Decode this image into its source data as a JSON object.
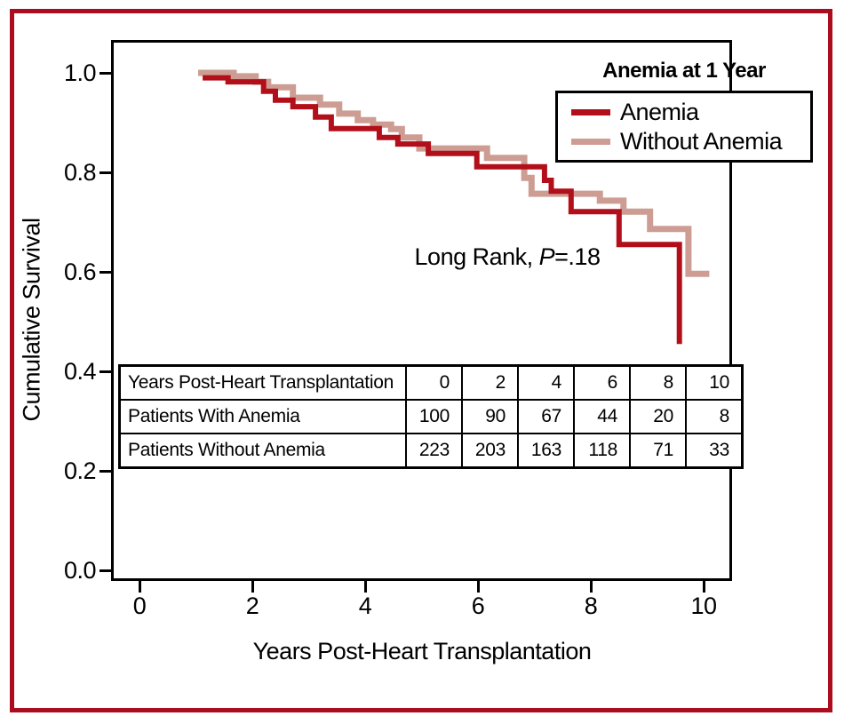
{
  "figure": {
    "border_color": "#ab0c1e",
    "background_color": "#ffffff"
  },
  "chart_data": {
    "type": "line",
    "subtype": "kaplan-meier-step-curve",
    "title": "",
    "xlabel": "Years Post-Heart Transplantation",
    "ylabel": "Cumulative Survival",
    "x_ticks": [
      "0",
      "2",
      "4",
      "6",
      "8",
      "10"
    ],
    "y_ticks": [
      "0.0",
      "0.2",
      "0.4",
      "0.6",
      "0.8",
      "1.0"
    ],
    "xlim": [
      -0.5,
      10.5
    ],
    "ylim": [
      0.0,
      1.06
    ],
    "grid": false,
    "legend": {
      "title": "Anemia at 1 Year",
      "position": "top-right",
      "entries": [
        {
          "label": "Anemia",
          "color": "#b20f1a"
        },
        {
          "label": "Without Anemia",
          "color": "#cd9d93"
        }
      ]
    },
    "annotation": {
      "prefix": "Long Rank, ",
      "p": "P",
      "suffix": "=.18"
    },
    "series": [
      {
        "name": "Anemia",
        "color": "#b20f1a",
        "steps": [
          [
            1.12,
            0.99
          ],
          [
            1.57,
            0.982
          ],
          [
            2.2,
            0.963
          ],
          [
            2.41,
            0.945
          ],
          [
            2.72,
            0.932
          ],
          [
            3.12,
            0.911
          ],
          [
            3.4,
            0.888
          ],
          [
            4.25,
            0.87
          ],
          [
            4.58,
            0.857
          ],
          [
            5.12,
            0.838
          ],
          [
            5.98,
            0.811
          ],
          [
            7.18,
            0.784
          ],
          [
            7.3,
            0.762
          ],
          [
            7.65,
            0.721
          ],
          [
            8.5,
            0.655
          ],
          [
            9.57,
            0.455
          ]
        ]
      },
      {
        "name": "Without Anemia",
        "color": "#cd9d93",
        "steps": [
          [
            1.04,
            1.0
          ],
          [
            1.67,
            0.993
          ],
          [
            2.06,
            0.982
          ],
          [
            2.28,
            0.971
          ],
          [
            2.72,
            0.95
          ],
          [
            3.2,
            0.936
          ],
          [
            3.54,
            0.918
          ],
          [
            3.87,
            0.905
          ],
          [
            4.14,
            0.896
          ],
          [
            4.46,
            0.887
          ],
          [
            4.65,
            0.87
          ],
          [
            4.96,
            0.848
          ],
          [
            6.16,
            0.829
          ],
          [
            6.82,
            0.789
          ],
          [
            6.95,
            0.757
          ],
          [
            8.16,
            0.743
          ],
          [
            8.58,
            0.721
          ],
          [
            9.05,
            0.686
          ],
          [
            9.73,
            0.596
          ],
          [
            10.1,
            0.596
          ]
        ]
      }
    ]
  },
  "risk_table": {
    "rows": [
      {
        "label": "Years Post-Heart Transplantation",
        "values": [
          "0",
          "2",
          "4",
          "6",
          "8",
          "10"
        ]
      },
      {
        "label": "Patients With Anemia",
        "values": [
          "100",
          "90",
          "67",
          "44",
          "20",
          "8"
        ]
      },
      {
        "label": "Patients Without Anemia",
        "values": [
          "223",
          "203",
          "163",
          "118",
          "71",
          "33"
        ]
      }
    ]
  }
}
